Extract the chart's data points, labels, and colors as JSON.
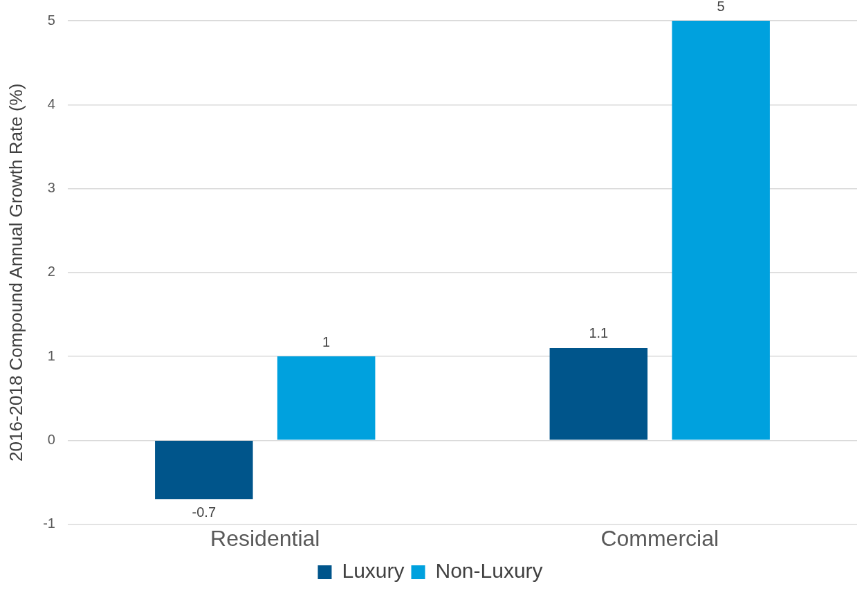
{
  "chart_data": {
    "type": "bar",
    "ylabel": "2016-2018 Compound Annual Growth Rate (%)",
    "categories": [
      "Residential",
      "Commercial"
    ],
    "series": [
      {
        "name": "Luxury",
        "color": "#00558b",
        "values": [
          -0.7,
          1.1
        ]
      },
      {
        "name": "Non-Luxury",
        "color": "#00a1de",
        "values": [
          1,
          5
        ]
      }
    ],
    "ylim": [
      -1,
      5
    ],
    "yticks": [
      -1,
      0,
      1,
      2,
      3,
      4,
      5
    ],
    "grid": "y",
    "legend": "bottom",
    "data_labels": true
  }
}
